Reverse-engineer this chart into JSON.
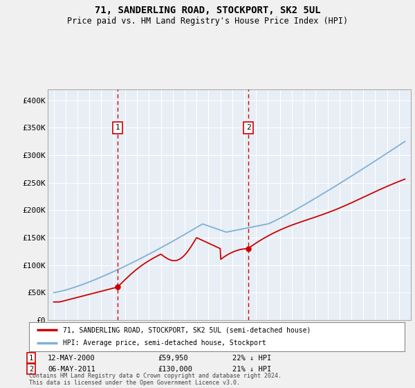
{
  "title": "71, SANDERLING ROAD, STOCKPORT, SK2 5UL",
  "subtitle": "Price paid vs. HM Land Registry's House Price Index (HPI)",
  "background_color": "#f0f0f0",
  "plot_bg_color": "#e8eef5",
  "grid_color": "#ffffff",
  "ylim": [
    0,
    420000
  ],
  "yticks": [
    0,
    50000,
    100000,
    150000,
    200000,
    250000,
    300000,
    350000,
    400000
  ],
  "ytick_labels": [
    "£0",
    "£50K",
    "£100K",
    "£150K",
    "£200K",
    "£250K",
    "£300K",
    "£350K",
    "£400K"
  ],
  "sale1": {
    "date_num": 2000.36,
    "value": 59950,
    "label": "1",
    "date_str": "12-MAY-2000",
    "pct": "22% ↓ HPI"
  },
  "sale2": {
    "date_num": 2011.35,
    "value": 130000,
    "label": "2",
    "date_str": "06-MAY-2011",
    "pct": "21% ↓ HPI"
  },
  "legend_entry1": "71, SANDERLING ROAD, STOCKPORT, SK2 5UL (semi-detached house)",
  "legend_entry2": "HPI: Average price, semi-detached house, Stockport",
  "footer": "Contains HM Land Registry data © Crown copyright and database right 2024.\nThis data is licensed under the Open Government Licence v3.0.",
  "line_color_red": "#cc0000",
  "line_color_blue": "#7fb0d8",
  "marker_color": "#cc0000",
  "sale_box_color": "#cc0000",
  "dashed_line_color": "#cc0000",
  "xlim_left": 1994.5,
  "xlim_right": 2025.0
}
